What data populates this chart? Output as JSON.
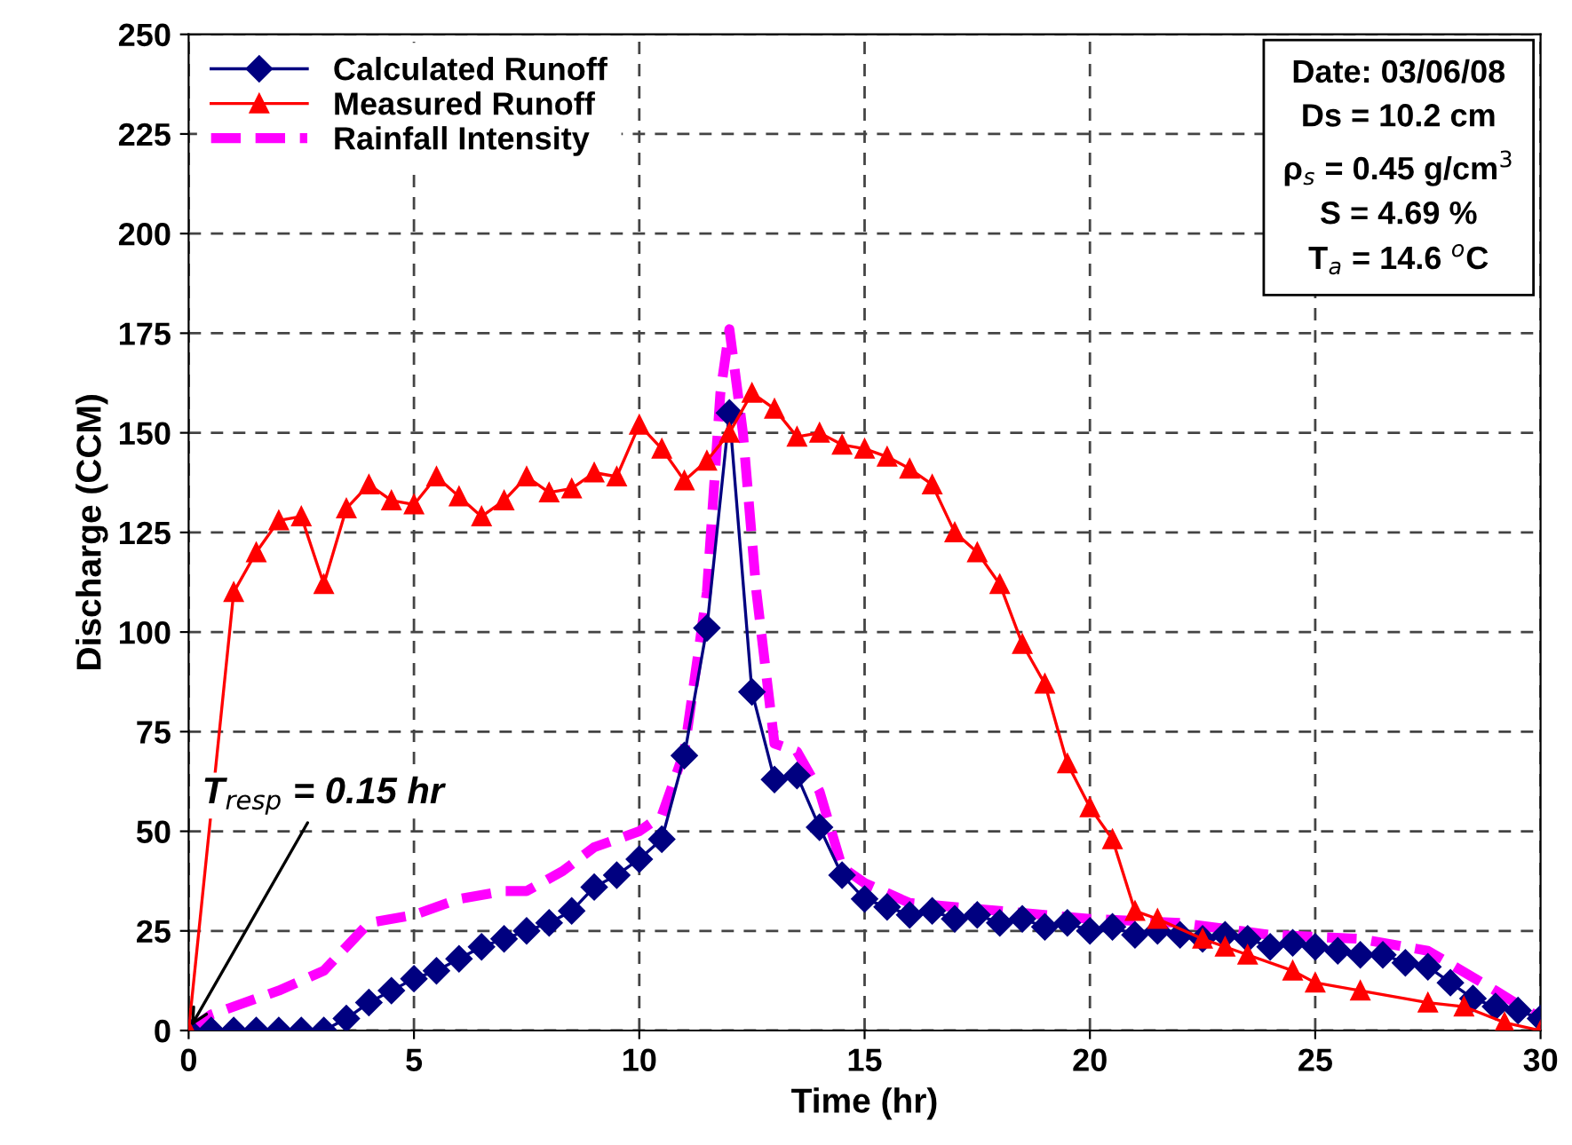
{
  "chart_data": {
    "type": "line",
    "xlabel": "Time (hr)",
    "ylabel": "Discharge (CCM)",
    "xlim": [
      0,
      30
    ],
    "xticks": [
      0,
      5,
      10,
      15,
      20,
      25,
      30
    ],
    "ylim": [
      0,
      250
    ],
    "yticks": [
      0,
      25,
      50,
      75,
      100,
      125,
      150,
      175,
      200,
      225,
      250
    ],
    "grid": true,
    "legend": "top left",
    "series": [
      {
        "name": "Calculated Runoff",
        "color": "#000080",
        "marker": "diamond",
        "line_style": "solid",
        "x": [
          0,
          0.5,
          1,
          1.5,
          2,
          2.5,
          3,
          3.5,
          4,
          4.5,
          5,
          5.5,
          6,
          6.5,
          7,
          7.5,
          8,
          8.5,
          9,
          9.5,
          10,
          10.5,
          11,
          11.5,
          12,
          12.5,
          13,
          13.5,
          14,
          14.5,
          15,
          15.5,
          16,
          16.5,
          17,
          17.5,
          18,
          18.5,
          19,
          19.5,
          20,
          20.5,
          21,
          21.5,
          22,
          22.5,
          23,
          23.5,
          24,
          24.5,
          25,
          25.5,
          26,
          26.5,
          27,
          27.5,
          28,
          28.5,
          29,
          29.5,
          30
        ],
        "values": [
          0,
          0,
          0,
          0,
          0,
          0,
          0,
          3,
          7,
          10,
          13,
          15,
          18,
          21,
          23,
          25,
          27,
          30,
          36,
          39,
          43,
          48,
          69,
          101,
          155,
          85,
          63,
          64,
          51,
          39,
          33,
          31,
          29,
          30,
          28,
          29,
          27,
          28,
          26,
          27,
          25,
          26,
          24,
          25,
          24,
          23,
          24,
          23,
          21,
          22,
          21,
          20,
          19,
          19,
          17,
          16,
          12,
          8,
          6,
          5,
          3
        ]
      },
      {
        "name": "Measured Runoff",
        "color": "#ff0000",
        "marker": "triangle",
        "line_style": "solid",
        "x": [
          0,
          1,
          1.5,
          2,
          2.5,
          3,
          3.5,
          4,
          4.5,
          5,
          5.5,
          6,
          6.5,
          7,
          7.5,
          8,
          8.5,
          9,
          9.5,
          10,
          10.5,
          11,
          11.5,
          12,
          12.5,
          13,
          13.5,
          14,
          14.5,
          15,
          15.5,
          16,
          16.5,
          17,
          17.5,
          18,
          18.5,
          19,
          19.5,
          20,
          20.5,
          21,
          21.5,
          22.5,
          23,
          23.5,
          24.5,
          25,
          26,
          27.5,
          28.3,
          29.2,
          30
        ],
        "values": [
          0,
          110,
          120,
          128,
          129,
          112,
          131,
          137,
          133,
          132,
          139,
          134,
          129,
          133,
          139,
          135,
          136,
          140,
          139,
          152,
          146,
          138,
          143,
          150,
          160,
          156,
          149,
          150,
          147,
          146,
          144,
          141,
          137,
          125,
          120,
          112,
          97,
          87,
          67,
          56,
          48,
          30,
          28,
          23,
          21,
          19,
          15,
          12,
          10,
          7,
          6,
          2,
          0
        ]
      },
      {
        "name": "Rainfall Intensity",
        "color": "#ff00ff",
        "marker": "none",
        "line_style": "dashed",
        "x": [
          0,
          0.5,
          2,
          3,
          4,
          5,
          6,
          7,
          7.5,
          8.3,
          9,
          10,
          10.5,
          11,
          11.5,
          11.8,
          12,
          12.3,
          12.6,
          13,
          13.5,
          14,
          14.5,
          15,
          16,
          18,
          20,
          22,
          24,
          26,
          27.5,
          29,
          30
        ],
        "values": [
          0,
          4,
          10,
          15,
          27,
          29,
          33,
          35,
          35,
          40,
          46,
          50,
          54,
          70,
          110,
          160,
          176,
          150,
          110,
          72,
          70,
          60,
          41,
          37,
          32,
          30,
          28,
          27,
          24,
          23,
          20,
          10,
          3
        ]
      }
    ],
    "annotations": [
      {
        "text": "T$_{resp}$ = 0.15 hr",
        "x": 0,
        "y": 0
      },
      "Date: 03/06/08\nDs = 10.2 cm\nρ$_{s}$ = 0.45 g/cm$^{3}$\nS = 4.69 %\nT$_{a}$ = 14.6 $^{o}$C"
    ]
  }
}
